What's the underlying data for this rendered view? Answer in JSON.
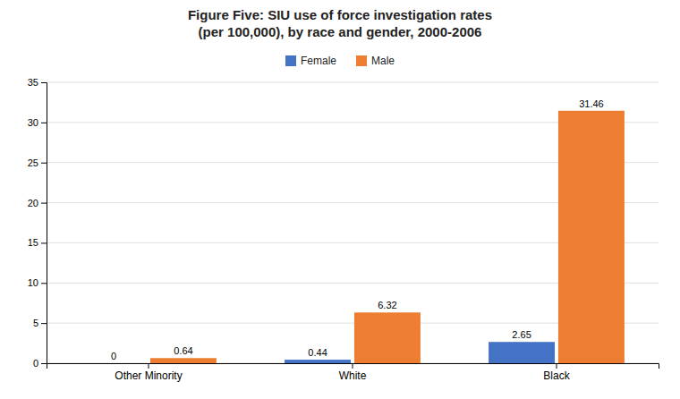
{
  "chart_data": {
    "type": "bar",
    "title": "Figure Five: SIU use of force investigation rates\n(per 100,000), by race and gender, 2000-2006",
    "categories": [
      "Other Minority",
      "White",
      "Black"
    ],
    "series": [
      {
        "name": "Female",
        "color": "#4472C4",
        "values": [
          0,
          0.44,
          2.65
        ]
      },
      {
        "name": "Male",
        "color": "#ED7D31",
        "values": [
          0.64,
          6.32,
          31.46
        ]
      }
    ],
    "ylim": [
      0,
      35
    ],
    "yticks": [
      0,
      5,
      10,
      15,
      20,
      25,
      30,
      35
    ],
    "grid": true,
    "legend": "top",
    "data_labels": true
  }
}
